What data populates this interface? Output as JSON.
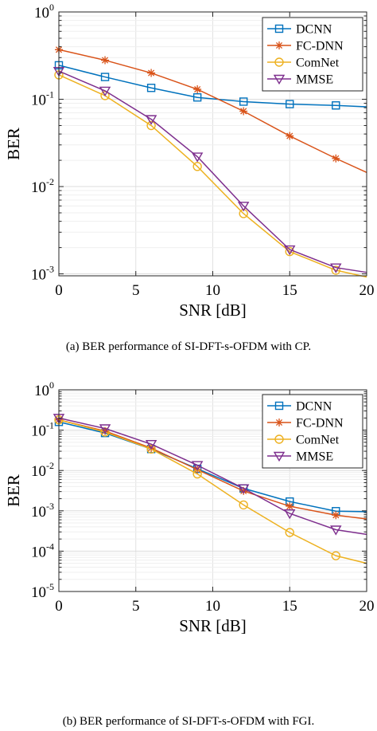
{
  "chart_data": [
    {
      "type": "line",
      "caption": "(a) BER performance of SI-DFT-s-OFDM with CP.",
      "xlabel": "SNR [dB]",
      "ylabel": "BER",
      "yscale": "log",
      "xlim": [
        0,
        20
      ],
      "ylim": [
        0.00095,
        1
      ],
      "xticks": [
        "0",
        "5",
        "10",
        "15",
        "20"
      ],
      "yticks": [
        {
          "value": 1,
          "base": "10",
          "exp": "0"
        },
        {
          "value": 0.1,
          "base": "10",
          "exp": "-1"
        },
        {
          "value": 0.01,
          "base": "10",
          "exp": "-2"
        },
        {
          "value": 0.001,
          "base": "10",
          "exp": "-3"
        }
      ],
      "grid": true,
      "legend_position": "top-right",
      "x": [
        0,
        3,
        6,
        9,
        12,
        15,
        18,
        20
      ],
      "series": [
        {
          "name": "DCNN",
          "color": "#0072BD",
          "marker": "square",
          "values": [
            0.245,
            0.18,
            0.135,
            0.105,
            0.094,
            0.088,
            0.085,
            0.082
          ]
        },
        {
          "name": "FC-DNN",
          "color": "#D95319",
          "marker": "asterisk",
          "values": [
            0.37,
            0.28,
            0.2,
            0.13,
            0.073,
            0.038,
            0.021,
            0.0145
          ]
        },
        {
          "name": "ComNet",
          "color": "#EDB120",
          "marker": "circle",
          "values": [
            0.19,
            0.11,
            0.05,
            0.017,
            0.0049,
            0.0018,
            0.0011,
            0.00092
          ]
        },
        {
          "name": "MMSE",
          "color": "#7E2F8E",
          "marker": "triangle-down",
          "values": [
            0.21,
            0.125,
            0.059,
            0.022,
            0.006,
            0.0019,
            0.00118,
            0.00104
          ]
        }
      ]
    },
    {
      "type": "line",
      "caption": "(b) BER performance of SI-DFT-s-OFDM with FGI.",
      "xlabel": "SNR [dB]",
      "ylabel": "BER",
      "yscale": "log",
      "xlim": [
        0,
        20
      ],
      "ylim": [
        1e-05,
        1
      ],
      "xticks": [
        "0",
        "5",
        "10",
        "15",
        "20"
      ],
      "yticks": [
        {
          "value": 1,
          "base": "10",
          "exp": "0"
        },
        {
          "value": 0.1,
          "base": "10",
          "exp": "-1"
        },
        {
          "value": 0.01,
          "base": "10",
          "exp": "-2"
        },
        {
          "value": 0.001,
          "base": "10",
          "exp": "-3"
        },
        {
          "value": 0.0001,
          "base": "10",
          "exp": "-4"
        },
        {
          "value": 1e-05,
          "base": "10",
          "exp": "-5"
        }
      ],
      "grid": true,
      "legend_position": "top-right",
      "x": [
        0,
        3,
        6,
        9,
        12,
        15,
        18,
        20
      ],
      "series": [
        {
          "name": "DCNN",
          "color": "#0072BD",
          "marker": "square",
          "values": [
            0.16,
            0.085,
            0.034,
            0.011,
            0.0036,
            0.0017,
            0.00098,
            0.00095
          ]
        },
        {
          "name": "FC-DNN",
          "color": "#D95319",
          "marker": "asterisk",
          "values": [
            0.18,
            0.095,
            0.036,
            0.0105,
            0.0031,
            0.0013,
            0.00078,
            0.00063
          ]
        },
        {
          "name": "ComNet",
          "color": "#EDB120",
          "marker": "circle",
          "values": [
            0.18,
            0.09,
            0.034,
            0.0082,
            0.0014,
            0.00029,
            7.7e-05,
            5e-05
          ]
        },
        {
          "name": "MMSE",
          "color": "#7E2F8E",
          "marker": "triangle-down",
          "values": [
            0.2,
            0.11,
            0.045,
            0.0135,
            0.0036,
            0.00086,
            0.00034,
            0.00026
          ]
        }
      ]
    }
  ]
}
